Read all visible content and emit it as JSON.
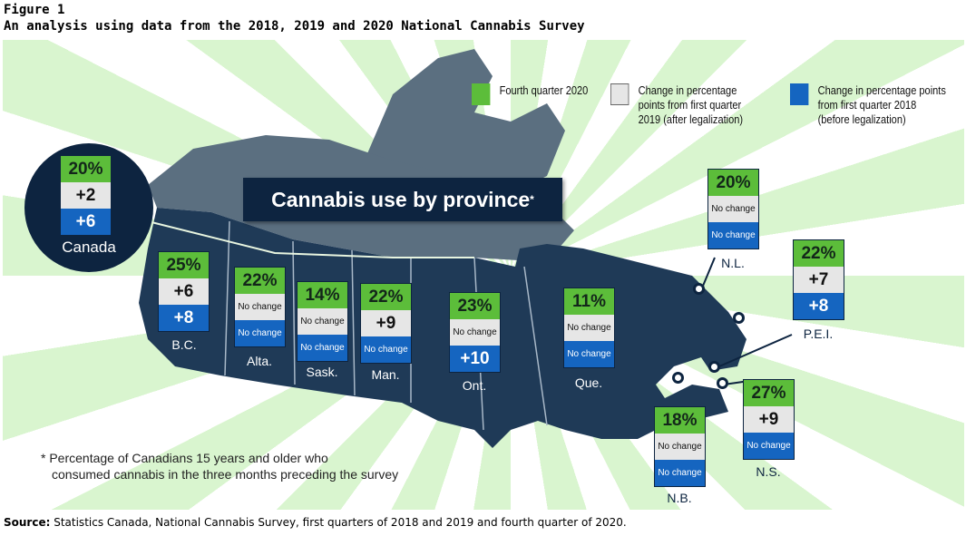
{
  "figure": {
    "number": "Figure 1",
    "title": "An analysis using data from the 2018, 2019 and 2020 National Cannabis Survey"
  },
  "legend": [
    {
      "label": "Fourth quarter 2020",
      "color": "#5cbd3a"
    },
    {
      "label": "Change in percentage points from first quarter 2019 (after legalization)",
      "color": "#e6e6e6"
    },
    {
      "label": "Change in percentage points from first quarter 2018 (before legalization)",
      "color": "#1565c0"
    }
  ],
  "banner": {
    "title": "Cannabis use by province",
    "mark": "*"
  },
  "regions": {
    "canada": {
      "name": "Canada",
      "q4_2020": "20%",
      "vs_2019": "+2",
      "vs_2018": "+6"
    },
    "bc": {
      "name": "B.C.",
      "q4_2020": "25%",
      "vs_2019": "+6",
      "vs_2018": "+8"
    },
    "alta": {
      "name": "Alta.",
      "q4_2020": "22%",
      "vs_2019": "No change",
      "vs_2018": "No change"
    },
    "sask": {
      "name": "Sask.",
      "q4_2020": "14%",
      "vs_2019": "No change",
      "vs_2018": "No change"
    },
    "man": {
      "name": "Man.",
      "q4_2020": "22%",
      "vs_2019": "+9",
      "vs_2018": "No change"
    },
    "ont": {
      "name": "Ont.",
      "q4_2020": "23%",
      "vs_2019": "No change",
      "vs_2018": "+10"
    },
    "que": {
      "name": "Que.",
      "q4_2020": "11%",
      "vs_2019": "No change",
      "vs_2018": "No change"
    },
    "nl": {
      "name": "N.L.",
      "q4_2020": "20%",
      "vs_2019": "No change",
      "vs_2018": "No change"
    },
    "pei": {
      "name": "P.E.I.",
      "q4_2020": "22%",
      "vs_2019": "+7",
      "vs_2018": "+8"
    },
    "nb": {
      "name": "N.B.",
      "q4_2020": "18%",
      "vs_2019": "No change",
      "vs_2018": "No change"
    },
    "ns": {
      "name": "N.S.",
      "q4_2020": "27%",
      "vs_2019": "+9",
      "vs_2018": "No change"
    }
  },
  "footnote": [
    "* Percentage of Canadians 15 years and older who",
    "consumed cannabis in the three months preceding the survey"
  ],
  "source": {
    "label": "Source:",
    "text": " Statistics Canada, National Cannabis Survey, first quarters of 2018 and 2019 and fourth quarter of 2020."
  },
  "colors": {
    "navy": "#0d2440",
    "territories": "#5b6f80",
    "provinces": "#1f3a57"
  }
}
